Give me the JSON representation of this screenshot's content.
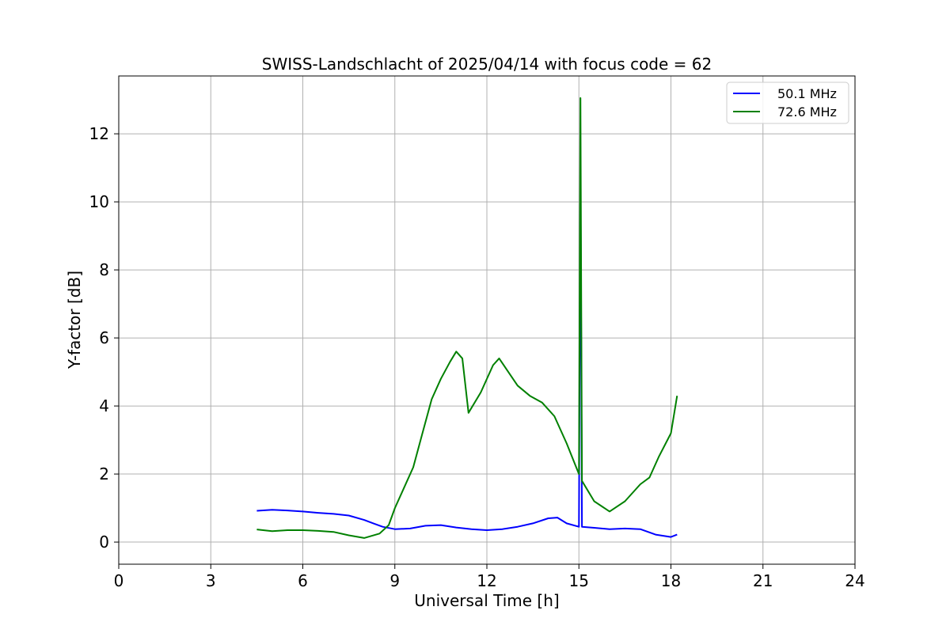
{
  "chart_data": {
    "type": "line",
    "title": "SWISS-Landschlacht of 2025/04/14 with focus code = 62",
    "xlabel": "Universal Time [h]",
    "ylabel": "Y-factor [dB]",
    "xlim": [
      0,
      24
    ],
    "ylim": [
      -0.65,
      13.7
    ],
    "xticks": [
      "0",
      "3",
      "6",
      "9",
      "12",
      "15",
      "18",
      "21",
      "24"
    ],
    "yticks": [
      "0",
      "2",
      "4",
      "6",
      "8",
      "10",
      "12"
    ],
    "grid": true,
    "legend_position": "top-right",
    "series": [
      {
        "name": "50.1 MHz",
        "color": "#0000ff",
        "points": [
          [
            4.5,
            0.92
          ],
          [
            5.0,
            0.95
          ],
          [
            5.5,
            0.93
          ],
          [
            6.0,
            0.9
          ],
          [
            6.5,
            0.86
          ],
          [
            7.0,
            0.83
          ],
          [
            7.5,
            0.78
          ],
          [
            8.0,
            0.65
          ],
          [
            8.3,
            0.55
          ],
          [
            8.6,
            0.45
          ],
          [
            9.0,
            0.38
          ],
          [
            9.5,
            0.4
          ],
          [
            10.0,
            0.48
          ],
          [
            10.5,
            0.5
          ],
          [
            11.0,
            0.43
          ],
          [
            11.5,
            0.38
          ],
          [
            12.0,
            0.35
          ],
          [
            12.5,
            0.38
          ],
          [
            13.0,
            0.45
          ],
          [
            13.5,
            0.55
          ],
          [
            14.0,
            0.7
          ],
          [
            14.3,
            0.72
          ],
          [
            14.6,
            0.55
          ],
          [
            15.0,
            0.45
          ],
          [
            15.05,
            11.1
          ],
          [
            15.1,
            0.45
          ],
          [
            15.5,
            0.42
          ],
          [
            16.0,
            0.38
          ],
          [
            16.5,
            0.4
          ],
          [
            17.0,
            0.38
          ],
          [
            17.5,
            0.22
          ],
          [
            18.0,
            0.15
          ],
          [
            18.2,
            0.22
          ]
        ]
      },
      {
        "name": "72.6 MHz",
        "color": "#008000",
        "points": [
          [
            4.5,
            0.37
          ],
          [
            5.0,
            0.32
          ],
          [
            5.5,
            0.35
          ],
          [
            6.0,
            0.35
          ],
          [
            6.5,
            0.33
          ],
          [
            7.0,
            0.3
          ],
          [
            7.5,
            0.2
          ],
          [
            8.0,
            0.12
          ],
          [
            8.5,
            0.25
          ],
          [
            8.8,
            0.5
          ],
          [
            9.0,
            1.0
          ],
          [
            9.3,
            1.6
          ],
          [
            9.6,
            2.2
          ],
          [
            9.9,
            3.2
          ],
          [
            10.2,
            4.2
          ],
          [
            10.5,
            4.8
          ],
          [
            10.8,
            5.3
          ],
          [
            11.0,
            5.6
          ],
          [
            11.2,
            5.4
          ],
          [
            11.4,
            3.8
          ],
          [
            11.8,
            4.4
          ],
          [
            12.2,
            5.2
          ],
          [
            12.4,
            5.4
          ],
          [
            12.7,
            5.0
          ],
          [
            13.0,
            4.6
          ],
          [
            13.4,
            4.3
          ],
          [
            13.8,
            4.1
          ],
          [
            14.2,
            3.7
          ],
          [
            14.6,
            2.9
          ],
          [
            15.0,
            2.0
          ],
          [
            15.05,
            13.05
          ],
          [
            15.1,
            1.8
          ],
          [
            15.5,
            1.2
          ],
          [
            16.0,
            0.9
          ],
          [
            16.5,
            1.2
          ],
          [
            17.0,
            1.7
          ],
          [
            17.3,
            1.9
          ],
          [
            17.6,
            2.5
          ],
          [
            18.0,
            3.2
          ],
          [
            18.2,
            4.3
          ]
        ]
      }
    ]
  }
}
